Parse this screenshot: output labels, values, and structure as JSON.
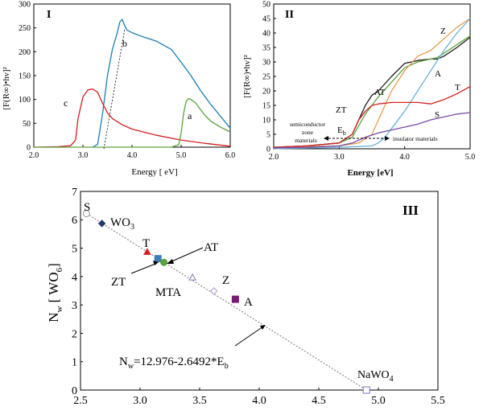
{
  "chart_data": [
    {
      "panel": "I",
      "type": "line",
      "xlabel": "Energy [ eV]",
      "ylabel": "[F(R∞)•hν]²",
      "xlim": [
        2.0,
        6.0
      ],
      "ylim": [
        0,
        300
      ],
      "xticks": [
        "2.0",
        "3.0",
        "4.0",
        "5.0",
        "6.0"
      ],
      "yticks": [
        "0",
        "50",
        "100",
        "150",
        "200",
        "250",
        "300"
      ],
      "series": [
        {
          "name": "b",
          "color": "#1a7fb5",
          "x": [
            3.2,
            3.3,
            3.4,
            3.5,
            3.6,
            3.7,
            3.75,
            3.8,
            3.85,
            3.9,
            4.0,
            4.2,
            4.5,
            4.8,
            5.0,
            5.2,
            5.4,
            5.6,
            5.8,
            6.0
          ],
          "y": [
            0,
            6,
            70,
            150,
            205,
            240,
            262,
            268,
            255,
            245,
            240,
            232,
            222,
            205,
            178,
            150,
            118,
            90,
            65,
            40
          ]
        },
        {
          "name": "c",
          "color": "#d42020",
          "x": [
            2.0,
            2.5,
            2.75,
            2.85,
            2.9,
            3.0,
            3.1,
            3.2,
            3.3,
            3.4,
            3.5,
            3.6,
            3.8,
            4.0,
            4.5,
            5.0,
            5.5,
            6.0
          ],
          "y": [
            0,
            1,
            3,
            15,
            60,
            105,
            120,
            122,
            115,
            92,
            72,
            60,
            47,
            38,
            25,
            15,
            8,
            2
          ]
        },
        {
          "name": "a",
          "color": "#5aa33c",
          "x": [
            2.0,
            4.8,
            4.95,
            5.0,
            5.05,
            5.1,
            5.15,
            5.2,
            5.3,
            5.4,
            5.5,
            5.6,
            5.8,
            6.0
          ],
          "y": [
            0,
            0,
            5,
            30,
            70,
            95,
            102,
            100,
            92,
            78,
            65,
            55,
            42,
            32
          ]
        }
      ],
      "annotations": [
        "a",
        "b",
        "c"
      ]
    },
    {
      "panel": "II",
      "type": "line",
      "xlabel": "Energy [eV]",
      "ylabel": "[F(R∞)•hν]²",
      "xlim": [
        2.0,
        5.0
      ],
      "ylim": [
        0,
        50
      ],
      "xticks": [
        "2.0",
        "3.0",
        "4.0",
        "5.0"
      ],
      "yticks": [
        "0",
        "5",
        "10",
        "15",
        "20",
        "25",
        "30",
        "35",
        "40",
        "45",
        "50"
      ],
      "series": [
        {
          "name": "AT",
          "color": "#1a1a1a",
          "x": [
            2.0,
            2.5,
            3.0,
            3.2,
            3.3,
            3.4,
            3.5,
            3.6,
            3.8,
            4.0,
            4.2,
            4.4,
            4.5,
            4.6,
            4.8,
            5.0
          ],
          "y": [
            0.5,
            1,
            2,
            5,
            10,
            15,
            18.5,
            20,
            25,
            29.5,
            30.5,
            31,
            31,
            32,
            35,
            38.5
          ]
        },
        {
          "name": "ZT",
          "color": "#5aa33c",
          "x": [
            2.0,
            2.5,
            3.0,
            3.2,
            3.3,
            3.4,
            3.5,
            3.6,
            3.8,
            4.0,
            4.2,
            4.4,
            4.5,
            4.6,
            4.8,
            5.0
          ],
          "y": [
            0.5,
            1,
            2,
            4,
            8,
            12,
            15,
            18,
            23,
            28,
            30,
            31,
            31.5,
            33,
            36,
            39
          ]
        },
        {
          "name": "Z",
          "color": "#e89a4a",
          "x": [
            2.0,
            3.0,
            3.3,
            3.5,
            3.6,
            3.7,
            3.8,
            4.0,
            4.2,
            4.4,
            4.6,
            4.8,
            5.0
          ],
          "y": [
            0.5,
            1,
            2,
            5,
            10,
            15,
            20,
            27,
            32,
            34,
            38,
            42,
            45
          ]
        },
        {
          "name": "A",
          "color": "#6ab0d8",
          "x": [
            2.0,
            3.0,
            3.5,
            3.6,
            3.7,
            3.8,
            4.0,
            4.2,
            4.4,
            4.6,
            4.8,
            5.0
          ],
          "y": [
            0,
            0.5,
            1,
            2,
            4,
            7,
            13,
            20,
            27,
            34,
            40,
            45
          ]
        },
        {
          "name": "T",
          "color": "#d42020",
          "x": [
            2.0,
            2.5,
            3.0,
            3.2,
            3.3,
            3.4,
            3.5,
            3.6,
            3.8,
            4.0,
            4.2,
            4.4,
            4.6,
            4.8,
            5.0
          ],
          "y": [
            0.5,
            1,
            2,
            5,
            10,
            13,
            15,
            15.5,
            16,
            16,
            16,
            15.5,
            17,
            19,
            21.5
          ]
        },
        {
          "name": "S",
          "color": "#7a4aa8",
          "x": [
            2.0,
            2.5,
            3.0,
            3.2,
            3.4,
            3.6,
            3.8,
            4.0,
            4.2,
            4.4,
            4.6,
            4.8,
            5.0
          ],
          "y": [
            0.3,
            0.5,
            1,
            2,
            4,
            5.5,
            6.5,
            7.5,
            8.5,
            10,
            11,
            12,
            12.5
          ]
        }
      ],
      "annotations": {
        "labels": [
          "AT",
          "ZT",
          "Z",
          "A",
          "T",
          "S"
        ],
        "Eb": "E",
        "Eb_sub": "b",
        "semiconductor": [
          "semiconductor",
          "zone",
          "materials"
        ],
        "insulator": "insulator materials"
      }
    },
    {
      "panel": "III",
      "type": "scatter",
      "xlabel": "",
      "ylabel": "Nw [ WO6]",
      "xlim": [
        2.5,
        5.5
      ],
      "ylim": [
        0,
        7
      ],
      "xticks": [
        "2.5",
        "3.0",
        "3.5",
        "4.0",
        "4.5",
        "5.0",
        "5.5"
      ],
      "yticks": [
        "0",
        "1",
        "2",
        "3",
        "4",
        "5",
        "6",
        "7"
      ],
      "fit": {
        "intercept": 12.976,
        "slope": -2.6492,
        "x_range": [
          2.55,
          4.9
        ],
        "label": "Nw=12.976-2.6492*Eb"
      },
      "points": [
        {
          "name": "S",
          "x": 2.55,
          "y": 6.22,
          "marker": "circle-open",
          "color": "#9a9a9a"
        },
        {
          "name": "WO3",
          "x": 2.68,
          "y": 5.87,
          "marker": "diamond",
          "color": "#1f3a6b"
        },
        {
          "name": "T",
          "x": 3.06,
          "y": 4.87,
          "marker": "triangle",
          "color": "#d42020"
        },
        {
          "name": "ZT",
          "x": 3.15,
          "y": 4.63,
          "marker": "square",
          "color": "#3f7fb7"
        },
        {
          "name": "AT",
          "x": 3.2,
          "y": 4.5,
          "marker": "circle",
          "color": "#5aa33c"
        },
        {
          "name": "MTA",
          "x": 3.44,
          "y": 3.97,
          "marker": "triangle-open",
          "color": "#7b7bb5"
        },
        {
          "name": "Z",
          "x": 3.62,
          "y": 3.49,
          "marker": "diamond-open",
          "color": "#b79ad0"
        },
        {
          "name": "A",
          "x": 3.8,
          "y": 3.2,
          "marker": "square",
          "color": "#7b1a73"
        },
        {
          "name": "NaWO4",
          "x": 4.9,
          "y": 0.0,
          "marker": "square-open",
          "color": "#7b7bb5"
        }
      ]
    }
  ],
  "labels": {
    "panel1": "I",
    "panel2": "II",
    "panel3": "III",
    "p1_a": "a",
    "p1_b": "b",
    "p1_c": "c",
    "p2_AT": "AT",
    "p2_ZT": "ZT",
    "p2_Z": "Z",
    "p2_A": "A",
    "p2_T": "T",
    "p2_S": "S",
    "p3_S": "S",
    "p3_WO": "WO",
    "p3_WO_sub": "3",
    "p3_T": "T",
    "p3_AT": "AT",
    "p3_ZT": "ZT",
    "p3_MTA": "MTA",
    "p3_Z": "Z",
    "p3_A": "A",
    "p3_NaWO": "NaWO",
    "p3_NaWO_sub": "4",
    "p3_eq_N": "N",
    "p3_eq_w": "w",
    "p3_eq_body": "=12.976-2.6492*E",
    "p3_eq_b": "b",
    "p3_ylabel_N": "N",
    "p3_ylabel_w": "w",
    "p3_ylabel_rest": " [ WO",
    "p3_ylabel_6": "6",
    "p3_ylabel_close": "]"
  }
}
